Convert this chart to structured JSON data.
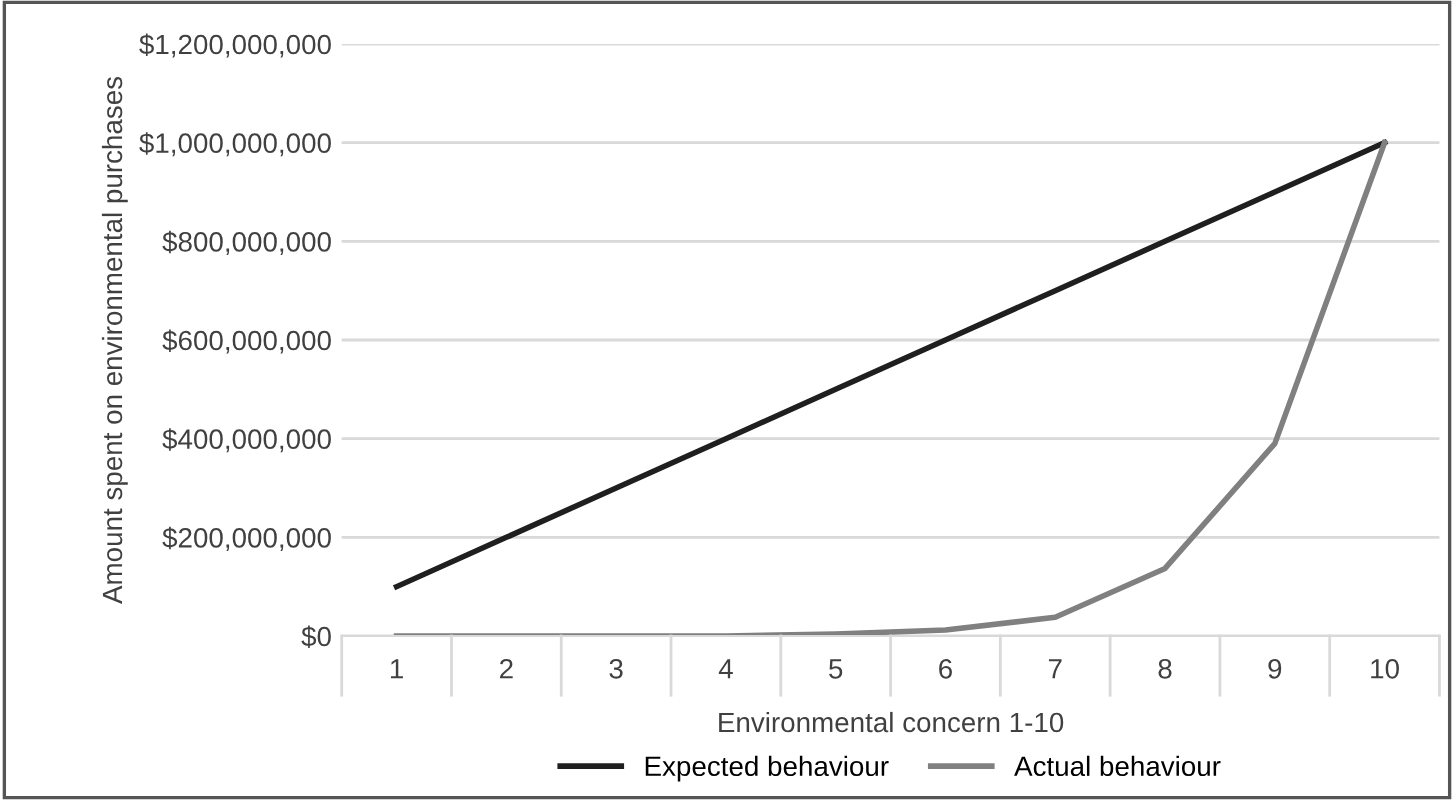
{
  "chart_data": {
    "type": "line",
    "xlabel": "Environmental concern 1-10",
    "ylabel": "Amount spent on environmental purchases",
    "categories": [
      "1",
      "2",
      "3",
      "4",
      "5",
      "6",
      "7",
      "8",
      "9",
      "10"
    ],
    "series": [
      {
        "name": "Expected behaviour",
        "color": "#1f1f1f",
        "values": [
          100000000,
          200000000,
          300000000,
          400000000,
          500000000,
          600000000,
          700000000,
          800000000,
          900000000,
          1000000000
        ]
      },
      {
        "name": "Actual behaviour",
        "color": "#808080",
        "values": [
          0,
          0,
          0,
          0,
          4000000,
          12000000,
          38000000,
          137000000,
          390000000,
          1000000000
        ]
      }
    ],
    "ylim": [
      0,
      1200000000
    ],
    "yticks": [
      {
        "value": 0,
        "label": "$0"
      },
      {
        "value": 200000000,
        "label": "$200,000,000"
      },
      {
        "value": 400000000,
        "label": "$400,000,000"
      },
      {
        "value": 600000000,
        "label": "$600,000,000"
      },
      {
        "value": 800000000,
        "label": "$800,000,000"
      },
      {
        "value": 1000000000,
        "label": "$1,000,000,000"
      },
      {
        "value": 1200000000,
        "label": "$1,200,000,000"
      }
    ],
    "grid": "y",
    "legend": "bottom",
    "marker": "none",
    "line_style": "solid"
  }
}
